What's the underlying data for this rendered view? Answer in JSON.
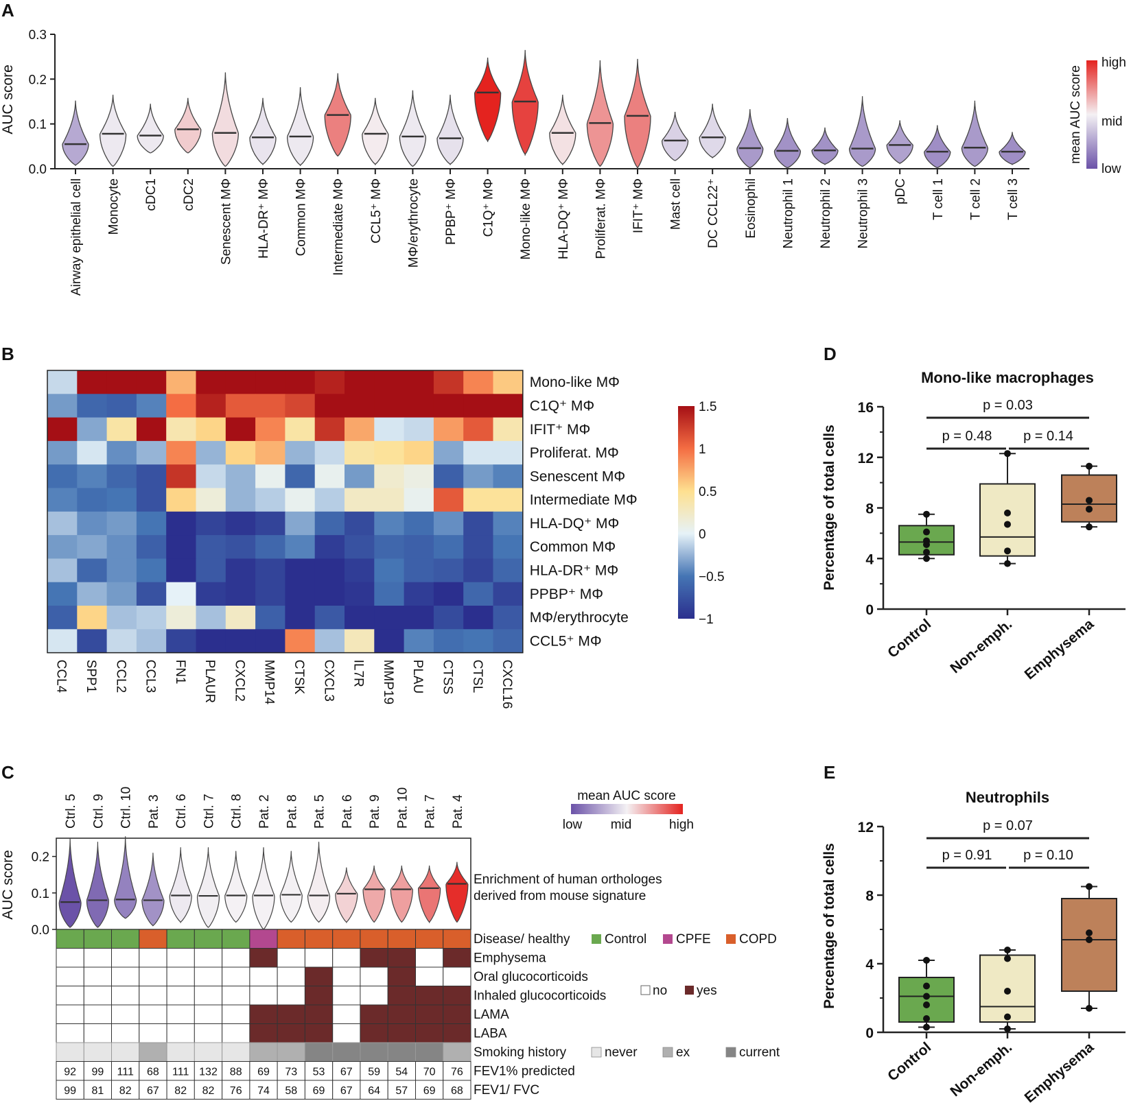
{
  "colors": {
    "scale_low": "#6b52a8",
    "scale_mid": "#f4f1f4",
    "scale_high": "#e4231f",
    "control": "#6aa84f",
    "cpfe": "#b3488f",
    "copd": "#d95f2b",
    "yes": "#6b2a2a",
    "no": "#ffffff",
    "never": "#e6e6e6",
    "ex": "#b0b0b0",
    "current": "#858585",
    "box_control": "#6aa84f",
    "box_nonemph": "#efe9c4",
    "box_emph": "#bd815a"
  },
  "panel_labels": {
    "a": "A",
    "b": "B",
    "c": "C",
    "d": "D",
    "e": "E"
  },
  "chart_data": [
    {
      "id": "A",
      "type": "violin",
      "ylabel": "AUC score",
      "ylim": [
        0,
        0.3
      ],
      "yticks": [
        "0.0",
        "0.1",
        "0.2",
        "0.3"
      ],
      "colorbar": {
        "title": "mean AUC score",
        "high": "high",
        "mid": "mid",
        "low": "low"
      },
      "categories": [
        {
          "label": "Airway epithelial cell",
          "median": 0.055,
          "min": 0.008,
          "max": 0.152,
          "color_value": -0.45
        },
        {
          "label": "Monocyte",
          "median": 0.078,
          "min": 0.005,
          "max": 0.165,
          "color_value": -0.05
        },
        {
          "label": "cDC1",
          "median": 0.074,
          "min": 0.035,
          "max": 0.145,
          "color_value": -0.05
        },
        {
          "label": "cDC2",
          "median": 0.088,
          "min": 0.035,
          "max": 0.158,
          "color_value": 0.18
        },
        {
          "label": "Senescent MΦ",
          "median": 0.08,
          "min": 0.005,
          "max": 0.215,
          "color_value": 0.1
        },
        {
          "label": "HLA-DR⁺ MΦ",
          "median": 0.07,
          "min": 0.01,
          "max": 0.158,
          "color_value": -0.08
        },
        {
          "label": "Common MΦ",
          "median": 0.072,
          "min": 0.008,
          "max": 0.182,
          "color_value": -0.05
        },
        {
          "label": "Intermediate MΦ",
          "median": 0.12,
          "min": 0.028,
          "max": 0.213,
          "color_value": 0.55
        },
        {
          "label": "CCL5⁺ MΦ",
          "median": 0.078,
          "min": 0.01,
          "max": 0.158,
          "color_value": 0.03
        },
        {
          "label": "MΦ/erythrocyte",
          "median": 0.072,
          "min": 0.005,
          "max": 0.175,
          "color_value": -0.05
        },
        {
          "label": "PPBP⁺ MΦ",
          "median": 0.068,
          "min": 0.01,
          "max": 0.165,
          "color_value": -0.1
        },
        {
          "label": "C1Q⁺ MΦ",
          "median": 0.17,
          "min": 0.062,
          "max": 0.248,
          "color_value": 1.0
        },
        {
          "label": "Mono-like MΦ",
          "median": 0.15,
          "min": 0.032,
          "max": 0.265,
          "color_value": 0.85
        },
        {
          "label": "HLA-DQ⁺ MΦ",
          "median": 0.08,
          "min": 0.01,
          "max": 0.165,
          "color_value": 0.08
        },
        {
          "label": "Proliferat. MΦ",
          "median": 0.102,
          "min": 0.005,
          "max": 0.242,
          "color_value": 0.45
        },
        {
          "label": "IFIT⁺ MΦ",
          "median": 0.118,
          "min": 0.002,
          "max": 0.245,
          "color_value": 0.55
        },
        {
          "label": "Mast cell",
          "median": 0.063,
          "min": 0.018,
          "max": 0.127,
          "color_value": -0.2
        },
        {
          "label": "DC CCL22⁺",
          "median": 0.07,
          "min": 0.025,
          "max": 0.145,
          "color_value": -0.15
        },
        {
          "label": "Eosinophil",
          "median": 0.046,
          "min": 0.002,
          "max": 0.133,
          "color_value": -0.55
        },
        {
          "label": "Neutrophil 1",
          "median": 0.04,
          "min": 0.002,
          "max": 0.113,
          "color_value": -0.6
        },
        {
          "label": "Neutrophil 2",
          "median": 0.041,
          "min": 0.01,
          "max": 0.092,
          "color_value": -0.6
        },
        {
          "label": "Neutrophil 3",
          "median": 0.045,
          "min": 0.005,
          "max": 0.162,
          "color_value": -0.55
        },
        {
          "label": "pDC",
          "median": 0.053,
          "min": 0.012,
          "max": 0.108,
          "color_value": -0.5
        },
        {
          "label": "T cell 1",
          "median": 0.038,
          "min": 0.002,
          "max": 0.097,
          "color_value": -0.62
        },
        {
          "label": "T cell 2",
          "median": 0.047,
          "min": 0.005,
          "max": 0.152,
          "color_value": -0.55
        },
        {
          "label": "T cell 3",
          "median": 0.038,
          "min": 0.01,
          "max": 0.082,
          "color_value": -0.62
        }
      ]
    },
    {
      "id": "B",
      "type": "heatmap",
      "columns": [
        "CCL4",
        "SPP1",
        "CCL2",
        "CCL3",
        "FN1",
        "PLAUR",
        "CXCL2",
        "MMP14",
        "CTSK",
        "CXCL3",
        "IL7R",
        "MMP19",
        "PLAU",
        "CTSS",
        "CTSL",
        "CXCL16"
      ],
      "rows": [
        "Mono-like MΦ",
        "C1Q⁺ MΦ",
        "IFIT⁺ MΦ",
        "Proliferat. MΦ",
        "Senescent MΦ",
        "Intermediate MΦ",
        "HLA-DQ⁺ MΦ",
        "Common MΦ",
        "HLA-DR⁺ MΦ",
        "PPBP⁺ MΦ",
        "MΦ/erythrocyte",
        "CCL5⁺ MΦ"
      ],
      "values": [
        [
          -0.1,
          1.5,
          1.5,
          1.5,
          0.7,
          1.5,
          1.5,
          1.5,
          1.5,
          1.4,
          1.5,
          1.5,
          1.5,
          1.3,
          0.9,
          0.6
        ],
        [
          -0.35,
          -0.6,
          -0.65,
          -0.45,
          1.0,
          1.4,
          1.1,
          1.1,
          1.2,
          1.5,
          1.5,
          1.5,
          1.5,
          1.5,
          1.5,
          1.5
        ],
        [
          1.5,
          -0.3,
          0.4,
          1.5,
          0.35,
          0.55,
          1.5,
          0.9,
          0.4,
          1.3,
          0.75,
          -0.05,
          -0.1,
          0.8,
          1.1,
          0.35
        ],
        [
          -0.35,
          -0.05,
          -0.4,
          -0.25,
          0.9,
          -0.25,
          0.55,
          0.7,
          -0.25,
          -0.1,
          0.4,
          0.45,
          0.55,
          -0.3,
          -0.05,
          -0.05
        ],
        [
          -0.55,
          -0.45,
          -0.6,
          -0.75,
          1.3,
          -0.1,
          -0.25,
          0.05,
          -0.6,
          0.05,
          -0.35,
          0.2,
          0.1,
          -0.65,
          -0.35,
          -0.45
        ],
        [
          -0.45,
          -0.55,
          -0.5,
          -0.75,
          0.55,
          0.15,
          -0.25,
          -0.15,
          0.05,
          -0.15,
          0.25,
          0.25,
          0.05,
          1.1,
          0.45,
          0.45
        ],
        [
          -0.2,
          -0.4,
          -0.35,
          -0.5,
          -1.0,
          -0.85,
          -0.95,
          -0.85,
          -0.3,
          -0.6,
          -0.8,
          -0.45,
          -0.55,
          -0.4,
          -0.8,
          -0.45
        ],
        [
          -0.35,
          -0.3,
          -0.4,
          -0.65,
          -1.0,
          -0.7,
          -0.75,
          -0.6,
          -0.45,
          -0.9,
          -0.75,
          -0.6,
          -0.65,
          -0.55,
          -0.8,
          -0.5
        ],
        [
          -0.2,
          -0.6,
          -0.4,
          -0.5,
          -1.0,
          -0.7,
          -0.95,
          -0.85,
          -1.0,
          -1.0,
          -0.9,
          -0.5,
          -0.65,
          -0.7,
          -0.85,
          -0.6
        ],
        [
          -0.5,
          -0.25,
          -0.35,
          -0.75,
          0.0,
          -0.9,
          -0.95,
          -0.85,
          -1.0,
          -1.0,
          -0.95,
          -0.55,
          -0.9,
          -1.0,
          -0.6,
          -0.85
        ],
        [
          -0.65,
          0.55,
          -0.2,
          -0.15,
          0.15,
          -0.2,
          0.25,
          -0.65,
          -1.0,
          -0.7,
          -1.0,
          -1.0,
          -1.0,
          -0.8,
          -1.0,
          -0.7
        ],
        [
          -0.05,
          -0.8,
          -0.1,
          -0.2,
          -0.85,
          -1.0,
          -1.0,
          -1.0,
          0.9,
          -0.2,
          0.3,
          -1.0,
          -0.45,
          -0.55,
          -0.5,
          -0.6
        ]
      ],
      "colorbar": {
        "ticks": [
          "1.5",
          "1",
          "0.5",
          "0",
          "−0.5",
          "−1"
        ],
        "min": -1,
        "max": 1.5
      }
    },
    {
      "id": "C",
      "type": "violin",
      "ylabel": "AUC score",
      "ylim": [
        0,
        0.25
      ],
      "yticks": [
        "0.0",
        "0.1",
        "0.2"
      ],
      "colorbar": {
        "title": "mean AUC score",
        "low": "low",
        "mid": "mid",
        "high": "high"
      },
      "annotation": [
        "Enrichment of human orthologes",
        "derived from mouse signature"
      ],
      "samples": [
        {
          "label": "Ctrl. 5",
          "median": 0.075,
          "min": 0.005,
          "max": 0.25,
          "color_value": -1.0
        },
        {
          "label": "Ctrl. 9",
          "median": 0.08,
          "min": 0.005,
          "max": 0.24,
          "color_value": -0.85
        },
        {
          "label": "Ctrl. 10",
          "median": 0.082,
          "min": 0.03,
          "max": 0.255,
          "color_value": -0.7
        },
        {
          "label": "Pat. 3",
          "median": 0.08,
          "min": 0.01,
          "max": 0.21,
          "color_value": -0.6
        },
        {
          "label": "Ctrl. 6",
          "median": 0.093,
          "min": 0.02,
          "max": 0.225,
          "color_value": -0.05
        },
        {
          "label": "Ctrl. 7",
          "median": 0.092,
          "min": 0.005,
          "max": 0.225,
          "color_value": -0.02
        },
        {
          "label": "Ctrl. 8",
          "median": 0.093,
          "min": 0.02,
          "max": 0.215,
          "color_value": 0.0
        },
        {
          "label": "Pat. 2",
          "median": 0.093,
          "min": 0.0,
          "max": 0.225,
          "color_value": 0.0
        },
        {
          "label": "Pat. 8",
          "median": 0.095,
          "min": 0.02,
          "max": 0.215,
          "color_value": 0.0
        },
        {
          "label": "Pat. 5",
          "median": 0.093,
          "min": 0.02,
          "max": 0.24,
          "color_value": 0.02
        },
        {
          "label": "Pat. 6",
          "median": 0.098,
          "min": 0.02,
          "max": 0.17,
          "color_value": 0.15
        },
        {
          "label": "Pat. 9",
          "median": 0.11,
          "min": 0.02,
          "max": 0.175,
          "color_value": 0.35
        },
        {
          "label": "Pat. 10",
          "median": 0.11,
          "min": 0.02,
          "max": 0.175,
          "color_value": 0.4
        },
        {
          "label": "Pat. 7",
          "median": 0.113,
          "min": 0.02,
          "max": 0.175,
          "color_value": 0.6
        },
        {
          "label": "Pat. 4",
          "median": 0.125,
          "min": 0.02,
          "max": 0.185,
          "color_value": 0.95
        }
      ],
      "rows": {
        "disease_label": "Disease/ healthy",
        "disease": [
          "Control",
          "Control",
          "Control",
          "COPD",
          "Control",
          "Control",
          "Control",
          "CPFE",
          "COPD",
          "COPD",
          "COPD",
          "COPD",
          "COPD",
          "COPD",
          "COPD"
        ],
        "disease_legend": [
          "Control",
          "CPFE",
          "COPD"
        ],
        "binary_legend": {
          "no": "no",
          "yes": "yes"
        },
        "binary": [
          {
            "label": "Emphysema",
            "values": [
              0,
              0,
              0,
              0,
              0,
              0,
              0,
              1,
              0,
              0,
              0,
              1,
              1,
              0,
              1
            ]
          },
          {
            "label": "Oral glucocorticoids",
            "values": [
              0,
              0,
              0,
              0,
              0,
              0,
              0,
              0,
              0,
              1,
              0,
              0,
              1,
              0,
              0
            ]
          },
          {
            "label": "Inhaled glucocorticoids",
            "values": [
              0,
              0,
              0,
              0,
              0,
              0,
              0,
              0,
              0,
              1,
              0,
              0,
              1,
              1,
              1
            ]
          },
          {
            "label": "LAMA",
            "values": [
              0,
              0,
              0,
              0,
              0,
              0,
              0,
              1,
              1,
              1,
              0,
              1,
              1,
              1,
              1
            ]
          },
          {
            "label": "LABA",
            "values": [
              0,
              0,
              0,
              0,
              0,
              0,
              0,
              1,
              1,
              1,
              0,
              1,
              1,
              1,
              1
            ]
          }
        ],
        "smoking_label": "Smoking history",
        "smoking": [
          "never",
          "never",
          "never",
          "ex",
          "never",
          "never",
          "never",
          "ex",
          "ex",
          "current",
          "current",
          "current",
          "current",
          "current",
          "ex"
        ],
        "smoking_legend": {
          "never": "never",
          "ex": "ex",
          "current": "current"
        },
        "fev1_pred_label": "FEV1% predicted",
        "fev1_pred": [
          "92",
          "99",
          "111",
          "68",
          "111",
          "132",
          "88",
          "69",
          "73",
          "53",
          "67",
          "59",
          "54",
          "70",
          "76"
        ],
        "fev1_fvc_label": "FEV1/ FVC",
        "fev1_fvc": [
          "99",
          "81",
          "82",
          "67",
          "82",
          "82",
          "76",
          "74",
          "58",
          "69",
          "67",
          "64",
          "57",
          "69",
          "68"
        ]
      }
    },
    {
      "id": "D",
      "type": "box",
      "title": "Mono-like macrophages",
      "ylabel": "Percentage of total cells",
      "ylim": [
        0,
        16
      ],
      "yticks": [
        "0",
        "4",
        "8",
        "12",
        "16"
      ],
      "categories": [
        "Control",
        "Non-emph.",
        "Emphysema"
      ],
      "boxes": [
        {
          "min": 4.0,
          "q1": 4.3,
          "median": 5.3,
          "q3": 6.6,
          "max": 7.5,
          "points": [
            4.0,
            4.5,
            5.1,
            5.4,
            6.1,
            7.5
          ]
        },
        {
          "min": 3.6,
          "q1": 4.2,
          "median": 5.7,
          "q3": 9.9,
          "max": 12.3,
          "points": [
            3.6,
            4.6,
            6.7,
            7.6,
            12.3
          ]
        },
        {
          "min": 6.5,
          "q1": 6.9,
          "median": 8.3,
          "q3": 10.6,
          "max": 11.3,
          "points": [
            6.5,
            7.9,
            8.6,
            11.3
          ]
        }
      ],
      "comparisons": [
        {
          "text": "p  = 0.48",
          "from": 0,
          "to": 1
        },
        {
          "text": "p  = 0.14",
          "from": 1,
          "to": 2
        },
        {
          "text": "p  = 0.03",
          "from": 0,
          "to": 2
        }
      ]
    },
    {
      "id": "E",
      "type": "box",
      "title": "Neutrophils",
      "ylabel": "Percentage of total cells",
      "ylim": [
        0,
        12
      ],
      "yticks": [
        "0",
        "4",
        "8",
        "12"
      ],
      "categories": [
        "Control",
        "Non-emph.",
        "Emphysema"
      ],
      "boxes": [
        {
          "min": 0.3,
          "q1": 0.6,
          "median": 2.1,
          "q3": 3.2,
          "max": 4.2,
          "points": [
            0.3,
            0.8,
            1.6,
            2.1,
            2.7,
            4.2
          ]
        },
        {
          "min": 0.2,
          "q1": 0.6,
          "median": 1.5,
          "q3": 4.5,
          "max": 4.8,
          "points": [
            0.2,
            0.9,
            2.4,
            4.3,
            4.8
          ]
        },
        {
          "min": 1.4,
          "q1": 2.4,
          "median": 5.4,
          "q3": 7.8,
          "max": 8.5,
          "points": [
            1.4,
            5.4,
            5.8,
            8.5
          ]
        }
      ],
      "comparisons": [
        {
          "text": "p  = 0.91",
          "from": 0,
          "to": 1
        },
        {
          "text": "p  = 0.10",
          "from": 1,
          "to": 2
        },
        {
          "text": "p  = 0.07",
          "from": 0,
          "to": 2
        }
      ]
    }
  ]
}
